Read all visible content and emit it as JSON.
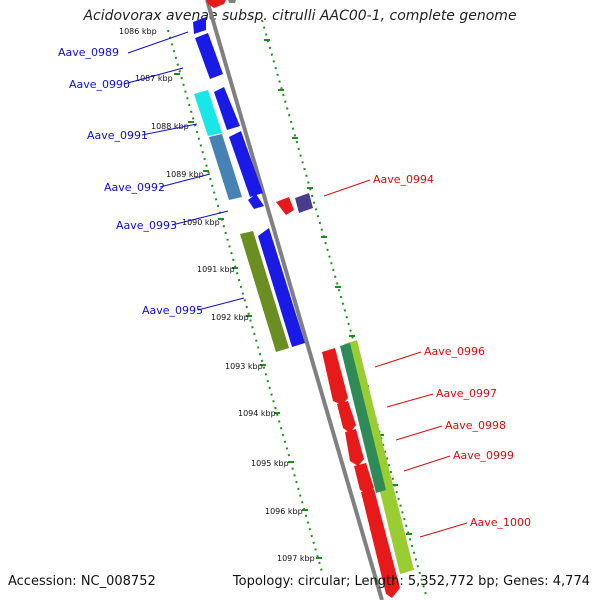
{
  "title": "Acidovorax avenae subsp. citrulli AAC00-1, complete genome",
  "accession": "Accession: NC_008752",
  "stats": "Topology: circular; Length: 5,352,772 bp; Genes: 4,774",
  "ticks": [
    "1086 kbp",
    "1087 kbp",
    "1088 kbp",
    "1089 kbp",
    "1090 kbp",
    "1091 kbp",
    "1092 kbp",
    "1093 kbp",
    "1094 kbp",
    "1095 kbp",
    "1096 kbp",
    "1097 kbp"
  ],
  "genes_left": [
    "Aave_0989",
    "Aave_0990",
    "Aave_0991",
    "Aave_0992",
    "Aave_0993",
    "Aave_0995"
  ],
  "genes_right": [
    "Aave_0994",
    "Aave_0996",
    "Aave_0997",
    "Aave_0998",
    "Aave_0999",
    "Aave_1000"
  ],
  "colors": {
    "forward": "#1a1ae6",
    "reverse": "#e61a1a",
    "cyan": "#19e6e6",
    "steelblue": "#4682b4",
    "olive": "#6b8e23",
    "darkpurple": "#483d8b",
    "lime": "#9acd32",
    "seagreen": "#2e8b57",
    "tickgreen": "#228b22",
    "backbone": "#808080"
  }
}
